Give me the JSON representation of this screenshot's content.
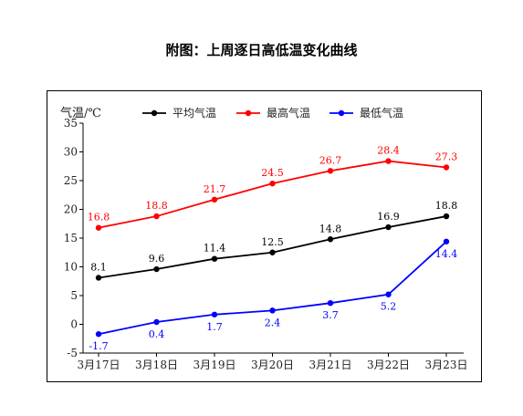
{
  "caption": "附图：上周逐日高低温变化曲线",
  "chart_data": {
    "type": "line",
    "categories": [
      "3月17日",
      "3月18日",
      "3月19日",
      "3月20日",
      "3月21日",
      "3月22日",
      "3月23日"
    ],
    "series": [
      {
        "name": "平均气温",
        "color": "#000000",
        "label_pos": "above",
        "values": [
          8.1,
          9.6,
          11.4,
          12.5,
          14.8,
          16.9,
          18.8
        ],
        "labels": [
          "8.1",
          "9.6",
          "11.4",
          "12.5",
          "14.8",
          "16.9",
          "18.8"
        ]
      },
      {
        "name": "最高气温",
        "color": "#ff0000",
        "label_pos": "above",
        "values": [
          16.8,
          18.8,
          21.7,
          24.5,
          26.7,
          28.4,
          27.3
        ],
        "labels": [
          "16.8",
          "18.8",
          "21.7",
          "24.5",
          "26.7",
          "28.4",
          "27.3"
        ]
      },
      {
        "name": "最低气温",
        "color": "#0000ff",
        "label_pos": "below",
        "values": [
          -1.7,
          0.4,
          1.7,
          2.4,
          3.7,
          5.2,
          14.4
        ],
        "labels": [
          "-1.7",
          "0.4",
          "1.7",
          "2.4",
          "3.7",
          "5.2",
          "14.4"
        ]
      }
    ],
    "ylabel": "气温/℃",
    "xlabel": "",
    "ylim": [
      -5,
      35
    ],
    "yticks": [
      -5,
      0,
      5,
      10,
      15,
      20,
      25,
      30,
      35
    ],
    "grid": false,
    "legend": "top"
  }
}
